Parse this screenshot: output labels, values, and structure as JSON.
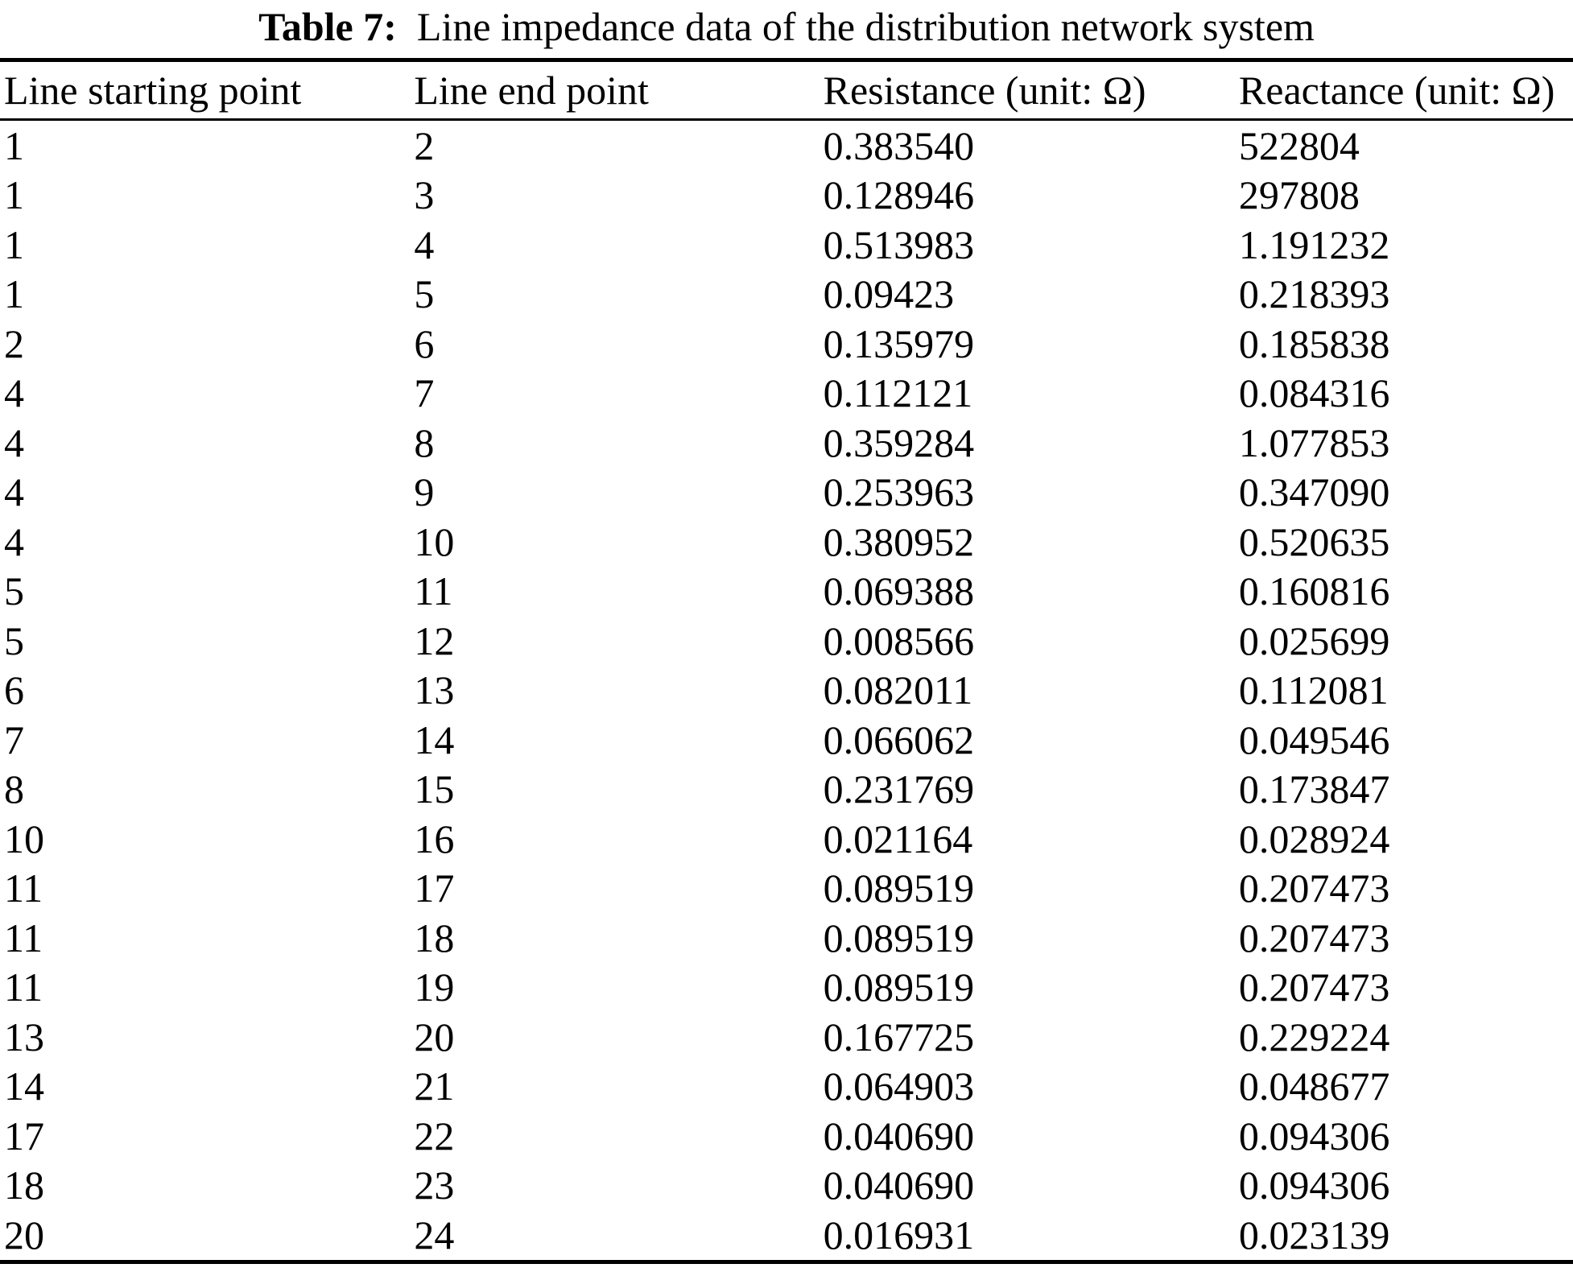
{
  "caption": {
    "label": "Table 7:",
    "text": "Line impedance data of the distribution network system"
  },
  "table": {
    "columns": [
      "Line starting point",
      "Line end point",
      "Resistance (unit: Ω)",
      "Reactance (unit: Ω)"
    ],
    "rows": [
      [
        "1",
        "2",
        "0.383540",
        "522804"
      ],
      [
        "1",
        "3",
        "0.128946",
        "297808"
      ],
      [
        "1",
        "4",
        "0.513983",
        "1.191232"
      ],
      [
        "1",
        "5",
        "0.09423",
        "0.218393"
      ],
      [
        "2",
        "6",
        "0.135979",
        "0.185838"
      ],
      [
        "4",
        "7",
        "0.112121",
        "0.084316"
      ],
      [
        "4",
        "8",
        "0.359284",
        "1.077853"
      ],
      [
        "4",
        "9",
        "0.253963",
        "0.347090"
      ],
      [
        "4",
        "10",
        "0.380952",
        "0.520635"
      ],
      [
        "5",
        "11",
        "0.069388",
        "0.160816"
      ],
      [
        "5",
        "12",
        "0.008566",
        "0.025699"
      ],
      [
        "6",
        "13",
        "0.082011",
        "0.112081"
      ],
      [
        "7",
        "14",
        "0.066062",
        "0.049546"
      ],
      [
        "8",
        "15",
        "0.231769",
        "0.173847"
      ],
      [
        "10",
        "16",
        "0.021164",
        "0.028924"
      ],
      [
        "11",
        "17",
        "0.089519",
        "0.207473"
      ],
      [
        "11",
        "18",
        "0.089519",
        "0.207473"
      ],
      [
        "11",
        "19",
        "0.089519",
        "0.207473"
      ],
      [
        "13",
        "20",
        "0.167725",
        "0.229224"
      ],
      [
        "14",
        "21",
        "0.064903",
        "0.048677"
      ],
      [
        "17",
        "22",
        "0.040690",
        "0.094306"
      ],
      [
        "18",
        "23",
        "0.040690",
        "0.094306"
      ],
      [
        "20",
        "24",
        "0.016931",
        "0.023139"
      ]
    ]
  },
  "colors": {
    "text": "#000000",
    "background": "#ffffff",
    "rule": "#000000"
  }
}
